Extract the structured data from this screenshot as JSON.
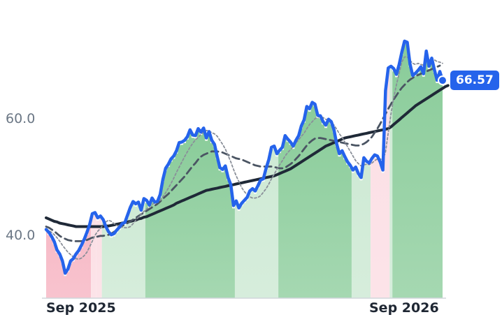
{
  "chart_data": {
    "type": "line",
    "title": "",
    "xlabel": "",
    "ylabel": "",
    "ylim": [
      29,
      77
    ],
    "grid": false,
    "legend": "none",
    "y_ticks": [
      "60.0",
      "40.0"
    ],
    "x_ticks": [
      "Sep 2025",
      "Sep 2026"
    ],
    "last_value": "66.57",
    "colors": {
      "price": "#2563eb",
      "ma_fast": "#8a8f99",
      "ma_mid": "#4b5563",
      "ma_slow": "#1f2937",
      "up_fill": "#5cb872",
      "down_fill": "#f4a3b4"
    },
    "series": [
      {
        "values": [
          41.0,
          40.5,
          39.8,
          38.9,
          37.5,
          36.8,
          35.6,
          33.5,
          34.2,
          35.6,
          36.0,
          36.8,
          37.4,
          38.3,
          39.3,
          40.5,
          41.8,
          43.7,
          43.9,
          43.0,
          43.3,
          42.7,
          41.5,
          40.6,
          40.1,
          40.3,
          40.9,
          41.4,
          42.0,
          42.2,
          43.5,
          44.8,
          45.8,
          45.4,
          45.7,
          44.3,
          46.3,
          46.0,
          45.2,
          46.4,
          45.7,
          45.8,
          47.0,
          49.6,
          51.5,
          52.2,
          53.1,
          53.6,
          54.5,
          55.9,
          56.0,
          56.3,
          56.9,
          58.1,
          57.2,
          57.1,
          58.3,
          57.7,
          58.4,
          56.7,
          57.8,
          56.3,
          55.6,
          53.5,
          51.6,
          51.3,
          51.9,
          49.9,
          48.7,
          45.1,
          45.9,
          44.7,
          45.5,
          46.0,
          46.5,
          47.6,
          48.0,
          47.6,
          48.5,
          49.5,
          49.7,
          51.5,
          53.0,
          55.1,
          55.3,
          54.0,
          54.6,
          55.1,
          57.1,
          56.5,
          56.0,
          55.3,
          56.3,
          57.1,
          58.8,
          59.8,
          62.1,
          61.7,
          62.8,
          62.5,
          60.6,
          60.5,
          59.5,
          58.9,
          59.9,
          59.5,
          58.1,
          55.7,
          54.0,
          54.5,
          53.5,
          52.6,
          52.0,
          51.2,
          51.7,
          50.6,
          49.9,
          53.3,
          52.7,
          52.4,
          53.2,
          53.8,
          53.6,
          52.6,
          51.2,
          64.8,
          68.7,
          69.0,
          68.6,
          67.6,
          69.3,
          71.4,
          73.3,
          73.1,
          69.4,
          67.4,
          67.8,
          68.3,
          68.9,
          67.7,
          71.6,
          69.0,
          70.4,
          68.4,
          66.6,
          68.1,
          66.57
        ]
      },
      {
        "values": [
          41.0,
          40.8,
          40.5,
          40.1,
          39.6,
          39.0,
          38.3,
          37.7,
          37.1,
          36.7,
          36.3,
          36.0,
          35.9,
          36.1,
          36.5,
          37.1,
          38.0,
          39.0,
          40.0,
          40.7,
          41.2,
          41.8,
          42.3,
          42.6,
          42.4,
          42.0,
          41.7,
          41.5,
          41.4,
          41.3,
          41.3,
          41.5,
          42.0,
          42.6,
          43.1,
          43.6,
          44.1,
          44.5,
          44.9,
          45.3,
          45.5,
          45.7,
          46.0,
          46.6,
          47.3,
          48.1,
          48.9,
          49.8,
          50.8,
          51.7,
          52.6,
          53.5,
          54.3,
          55.1,
          55.8,
          56.4,
          56.8,
          57.3,
          57.7,
          58.0,
          57.9,
          57.6,
          57.4,
          57.0,
          56.3,
          55.6,
          54.8,
          53.7,
          52.6,
          51.3,
          50.2,
          49.2,
          48.2,
          47.5,
          47.0,
          46.6,
          46.4,
          46.4,
          46.5,
          46.8,
          47.4,
          48.0,
          48.8,
          49.7,
          50.5,
          51.3,
          52.1,
          52.8,
          53.6,
          54.2,
          54.7,
          55.2,
          55.8,
          56.4,
          57.0,
          57.5,
          58.3,
          59.0,
          59.5,
          60.0,
          60.3,
          60.3,
          60.2,
          59.9,
          59.7,
          59.4,
          58.9,
          58.2,
          57.4,
          56.8,
          56.0,
          55.2,
          54.4,
          53.6,
          52.8,
          52.3,
          51.9,
          52.1,
          52.2,
          52.1,
          52.4,
          52.8,
          53.1,
          53.1,
          52.9,
          54.3,
          57.6,
          60.8,
          63.6,
          65.8,
          67.8,
          69.7,
          70.6,
          70.6,
          70.0,
          69.5,
          69.3,
          69.5,
          69.3,
          69.2,
          69.7,
          70.1,
          70.3,
          70.1,
          69.8,
          69.7,
          69.5
        ]
      },
      {
        "values": [
          41.5,
          41.3,
          41.0,
          40.7,
          40.3,
          39.9,
          39.6,
          39.4,
          39.2,
          39.1,
          39.0,
          39.0,
          39.0,
          39.0,
          39.1,
          39.2,
          39.4,
          39.6,
          39.7,
          39.8,
          39.9,
          39.9,
          40.0,
          40.1,
          40.3,
          40.6,
          41.0,
          41.3,
          41.6,
          41.9,
          42.1,
          42.4,
          42.7,
          43.0,
          43.3,
          43.6,
          43.9,
          44.2,
          44.5,
          44.8,
          45.1,
          45.4,
          45.8,
          46.3,
          46.7,
          47.1,
          47.6,
          48.1,
          48.6,
          49.1,
          49.6,
          50.1,
          50.7,
          51.3,
          51.9,
          52.4,
          53.0,
          53.5,
          53.8,
          54.0,
          54.2,
          54.4,
          54.4,
          54.4,
          54.3,
          54.2,
          54.0,
          53.8,
          53.6,
          53.4,
          53.2,
          53.1,
          53.0,
          52.8,
          52.6,
          52.4,
          52.2,
          52.0,
          51.9,
          51.8,
          51.8,
          51.8,
          51.8,
          51.8,
          51.7,
          51.6,
          51.5,
          51.5,
          51.6,
          51.9,
          52.2,
          52.6,
          53.1,
          53.6,
          54.2,
          54.8,
          55.4,
          55.9,
          56.3,
          56.6,
          56.7,
          56.7,
          56.6,
          56.5,
          56.4,
          56.3,
          56.2,
          56.1,
          56.0,
          55.9,
          55.8,
          55.7,
          55.6,
          55.5,
          55.4,
          55.4,
          55.5,
          55.7,
          56.0,
          56.4,
          56.9,
          57.6,
          58.3,
          59.1,
          60.0,
          60.8,
          61.7,
          62.5,
          63.3,
          64.0,
          64.7,
          65.3,
          65.8,
          66.3,
          66.7,
          67.0,
          67.3,
          67.5,
          67.7,
          67.9,
          68.1,
          68.3,
          68.5,
          68.7,
          68.9,
          69.1
        ]
      },
      {
        "values": [
          43.0,
          42.8,
          42.6,
          42.4,
          42.3,
          42.1,
          42.0,
          41.9,
          41.8,
          41.7,
          41.6,
          41.5,
          41.5,
          41.5,
          41.5,
          41.5,
          41.5,
          41.5,
          41.5,
          41.5,
          41.5,
          41.5,
          41.6,
          41.6,
          41.7,
          41.8,
          41.9,
          42.0,
          42.1,
          42.2,
          42.3,
          42.4,
          42.5,
          42.6,
          42.8,
          42.9,
          43.1,
          43.2,
          43.4,
          43.6,
          43.8,
          44.0,
          44.2,
          44.4,
          44.6,
          44.8,
          45.0,
          45.2,
          45.5,
          45.7,
          45.9,
          46.1,
          46.3,
          46.5,
          46.7,
          46.9,
          47.1,
          47.3,
          47.5,
          47.7,
          47.8,
          47.9,
          48.0,
          48.1,
          48.2,
          48.3,
          48.4,
          48.5,
          48.6,
          48.7,
          48.8,
          48.9,
          49.0,
          49.1,
          49.2,
          49.3,
          49.4,
          49.5,
          49.6,
          49.7,
          49.8,
          49.9,
          50.0,
          50.1,
          50.2,
          50.4,
          50.6,
          50.8,
          51.0,
          51.2,
          51.4,
          51.7,
          52.0,
          52.3,
          52.6,
          52.9,
          53.2,
          53.5,
          53.8,
          54.1,
          54.4,
          54.7,
          55.0,
          55.3,
          55.5,
          55.7,
          55.9,
          56.1,
          56.3,
          56.5,
          56.7,
          56.8,
          56.9,
          57.0,
          57.1,
          57.2,
          57.3,
          57.4,
          57.5,
          57.6,
          57.7,
          57.8,
          57.9,
          58.0,
          58.1,
          58.2,
          58.3,
          58.6,
          59.0,
          59.4,
          59.8,
          60.2,
          60.6,
          61.0,
          61.4,
          61.8,
          62.2,
          62.5,
          62.8,
          63.1,
          63.4,
          63.7,
          64.0,
          64.3,
          64.6,
          64.9,
          65.2,
          65.5,
          65.7
        ]
      }
    ],
    "shaded_regions": [
      {
        "start": 0,
        "end": 16,
        "kind": "down"
      },
      {
        "start": 17,
        "end": 18,
        "kind": "down_light"
      },
      {
        "start": 19,
        "end": 20,
        "kind": "down_light"
      },
      {
        "start": 21,
        "end": 36,
        "kind": "up_light"
      },
      {
        "start": 37,
        "end": 69,
        "kind": "up"
      },
      {
        "start": 70,
        "end": 85,
        "kind": "up_light"
      },
      {
        "start": 86,
        "end": 112,
        "kind": "up"
      },
      {
        "start": 113,
        "end": 119,
        "kind": "up_light"
      },
      {
        "start": 120,
        "end": 126,
        "kind": "down_light"
      },
      {
        "start": 127,
        "end": 127,
        "kind": "up_light"
      },
      {
        "start": 128,
        "end": 146,
        "kind": "up"
      }
    ]
  }
}
